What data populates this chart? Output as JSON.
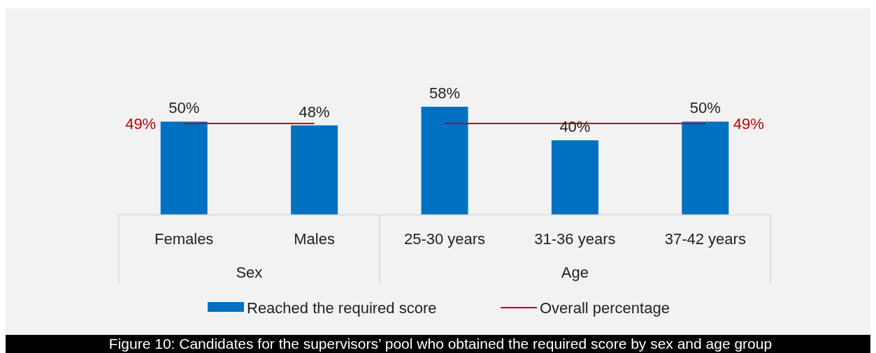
{
  "chart_data": [
    {
      "type": "bar",
      "categories": [
        "Females",
        "Males"
      ],
      "xlabel": "Sex",
      "series": [
        {
          "color": "#0070c0",
          "values": [
            50,
            48
          ],
          "value_labels": [
            "50%",
            "48%"
          ]
        },
        {
          "type": "line",
          "color": "#c00000",
          "values": [
            49,
            49
          ],
          "value_labels": [
            "49%",
            null
          ]
        }
      ]
    },
    {
      "type": "bar",
      "categories": [
        "25-30 years",
        "31-36 years",
        "37-42 years"
      ],
      "xlabel": "Age",
      "series": [
        {
          "name": "Reached the required score",
          "color": "#0070c0",
          "values": [
            58,
            40,
            50
          ],
          "value_labels": [
            "58%",
            "40%",
            "50%"
          ]
        },
        {
          "name": "Overall percentage",
          "type": "line",
          "color": "#c00000",
          "values": [
            49,
            49,
            49
          ],
          "value_labels": [
            null,
            null,
            "49%"
          ]
        }
      ],
      "legend": "bottom",
      "annotations": [
        "Figure 10: Candidates for the supervisors’ pool who obtained the required score by sex and age group"
      ]
    }
  ]
}
